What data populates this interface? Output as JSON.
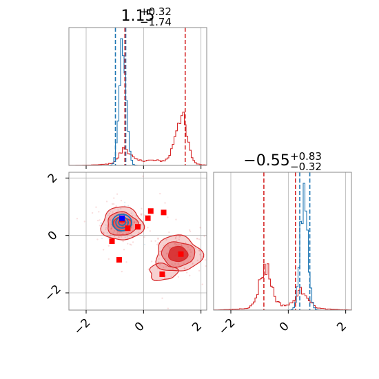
{
  "colors": {
    "posterior": "#1f77b4",
    "alt": "#d62728",
    "marker": "#ff0000",
    "truth": "#0000ff",
    "grid": "#b0b0b0",
    "frame": "#888888"
  },
  "titles": {
    "param1": {
      "main": "1.15",
      "sup": "+0.32",
      "sub": "−1.74"
    },
    "param2": {
      "main": "−0.55",
      "sup": "+0.83",
      "sub": "−0.32"
    }
  },
  "chart_data": {
    "type": "corner",
    "axes": {
      "param1": {
        "range": [
          -2.6,
          2.2
        ],
        "ticks": [
          -2,
          0,
          2
        ],
        "tick_labels": [
          "−2",
          "0",
          "2"
        ]
      },
      "param2": {
        "range": [
          -2.6,
          2.2
        ],
        "ticks": [
          -2,
          0,
          2
        ],
        "tick_labels": [
          "−2",
          "0",
          "2"
        ]
      }
    },
    "grid": true,
    "marginal_param1": {
      "blue_histogram": {
        "peak": -0.72,
        "quantile_lines": [
          -0.98,
          -0.62
        ]
      },
      "red_histogram": {
        "peaks": [
          -0.65,
          1.3
        ],
        "quantile_lines": [
          -0.65,
          1.45
        ]
      }
    },
    "marginal_param2": {
      "blue_histogram": {
        "peak": 0.55,
        "quantile_lines": [
          0.4,
          0.75
        ]
      },
      "red_histogram": {
        "peaks": [
          -0.8,
          0.5
        ],
        "quantile_lines": [
          -0.85,
          0.25
        ]
      }
    },
    "joint": {
      "blue_contour_center": [
        -0.75,
        0.45
      ],
      "red_contour_modes": [
        {
          "center": [
            -0.75,
            0.4
          ]
        },
        {
          "center": [
            1.2,
            -0.65
          ]
        }
      ],
      "red_square_points": [
        [
          -1.1,
          -0.2
        ],
        [
          -0.85,
          -0.85
        ],
        [
          -0.75,
          0.55
        ],
        [
          -0.55,
          0.25
        ],
        [
          -0.2,
          0.3
        ],
        [
          0.15,
          0.6
        ],
        [
          0.25,
          0.85
        ],
        [
          0.7,
          0.8
        ],
        [
          0.65,
          -1.35
        ],
        [
          1.3,
          -0.65
        ]
      ],
      "truth_point": [
        -0.75,
        0.6
      ]
    }
  }
}
